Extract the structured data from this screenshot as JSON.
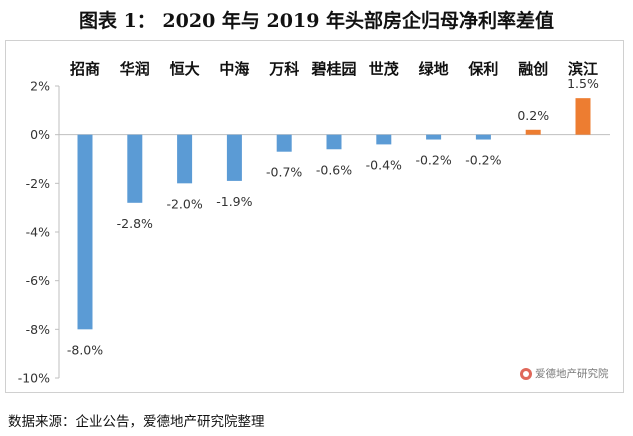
{
  "chart_data": {
    "type": "bar",
    "title": "图表 1：  2020 年与 2019 年头部房企归母净利率差值",
    "categories": [
      "招商",
      "华润",
      "恒大",
      "中海",
      "万科",
      "碧桂园",
      "世茂",
      "绿地",
      "保利",
      "融创",
      "滨江"
    ],
    "values": [
      -8.0,
      -2.8,
      -2.0,
      -1.9,
      -0.7,
      -0.6,
      -0.4,
      -0.2,
      -0.2,
      0.2,
      1.5
    ],
    "value_labels": [
      "-8.0%",
      "-2.8%",
      "-2.0%",
      "-1.9%",
      "-0.7%",
      "-0.6%",
      "-0.4%",
      "-0.2%",
      "-0.2%",
      "0.2%",
      "1.5%"
    ],
    "ylim": [
      -10,
      2
    ],
    "yticks": [
      "2%",
      "0%",
      "-2%",
      "-4%",
      "-6%",
      "-8%",
      "-10%"
    ],
    "ytick_values": [
      2,
      0,
      -2,
      -4,
      -6,
      -8,
      -10
    ],
    "category_label_position": "top",
    "grid": false,
    "colors": {
      "negative": "#5b9bd5",
      "positive": "#ed7d31"
    }
  },
  "watermark": "爱德地产研究院",
  "source": "数据来源：企业公告，爱德地产研究院整理"
}
